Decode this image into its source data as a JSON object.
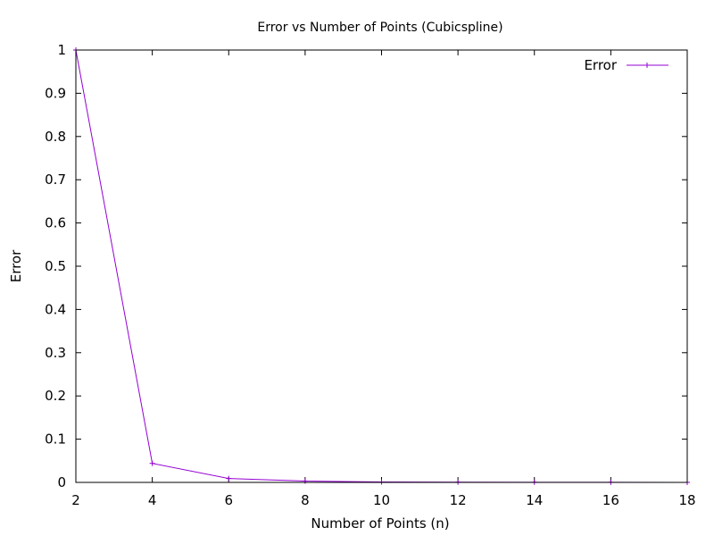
{
  "chart_data": {
    "type": "line",
    "title": "Error vs Number of Points (Cubicspline)",
    "xlabel": "Number of Points (n)",
    "ylabel": "Error",
    "xlim": [
      2,
      18
    ],
    "ylim": [
      0,
      1
    ],
    "x_ticks": [
      2,
      4,
      6,
      8,
      10,
      12,
      14,
      16,
      18
    ],
    "y_ticks": [
      0,
      0.1,
      0.2,
      0.3,
      0.4,
      0.5,
      0.6,
      0.7,
      0.8,
      0.9,
      1
    ],
    "grid": false,
    "legend_position": "top-right",
    "series": [
      {
        "name": "Error",
        "color": "#9400d3",
        "marker": "plus",
        "x": [
          2,
          4,
          6,
          8,
          10,
          12,
          14,
          16,
          18
        ],
        "y": [
          1.0,
          0.044,
          0.009,
          0.003,
          0.001,
          0.0005,
          0.0003,
          0.0002,
          0.0001
        ]
      }
    ]
  }
}
